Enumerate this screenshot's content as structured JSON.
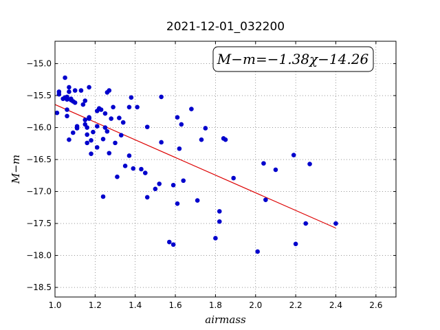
{
  "chart_data": {
    "type": "scatter",
    "title": "2021-12-01_032200",
    "xlabel": "airmass",
    "ylabel": "M−m",
    "xlim": [
      1.0,
      2.7
    ],
    "ylim": [
      -18.65,
      -14.65
    ],
    "y_inverted": true,
    "x_ticks": [
      1.0,
      1.2,
      1.4,
      1.6,
      1.8,
      2.0,
      2.2,
      2.4,
      2.6
    ],
    "x_tick_labels": [
      "1.0",
      "1.2",
      "1.4",
      "1.6",
      "1.8",
      "2.0",
      "2.2",
      "2.4",
      "2.6"
    ],
    "y_ticks": [
      -15.0,
      -15.5,
      -16.0,
      -16.5,
      -17.0,
      -17.5,
      -18.0,
      -18.5
    ],
    "y_tick_labels": [
      "−15.0",
      "−15.5",
      "−16.0",
      "−16.5",
      "−17.0",
      "−17.5",
      "−18.0",
      "−18.5"
    ],
    "grid": true,
    "point_color": "#0000cc",
    "fit_color": "#dd0000",
    "fit": {
      "slope": -1.38,
      "intercept": -14.26,
      "x_range": [
        1.0,
        2.4
      ]
    },
    "annotation": {
      "text": "M−m=−1.38χ−14.26",
      "placement": "top-right"
    },
    "points": [
      [
        1.01,
        -15.77
      ],
      [
        1.02,
        -15.48
      ],
      [
        1.02,
        -15.44
      ],
      [
        1.04,
        -15.55
      ],
      [
        1.05,
        -15.53
      ],
      [
        1.05,
        -15.22
      ],
      [
        1.06,
        -15.52
      ],
      [
        1.06,
        -15.56
      ],
      [
        1.06,
        -15.72
      ],
      [
        1.06,
        -15.82
      ],
      [
        1.07,
        -15.44
      ],
      [
        1.07,
        -15.37
      ],
      [
        1.07,
        -16.19
      ],
      [
        1.08,
        -15.57
      ],
      [
        1.08,
        -15.55
      ],
      [
        1.09,
        -15.59
      ],
      [
        1.09,
        -16.08
      ],
      [
        1.1,
        -15.61
      ],
      [
        1.1,
        -15.42
      ],
      [
        1.11,
        -16.01
      ],
      [
        1.11,
        -15.98
      ],
      [
        1.13,
        -15.42
      ],
      [
        1.14,
        -15.64
      ],
      [
        1.15,
        -15.58
      ],
      [
        1.15,
        -15.88
      ],
      [
        1.15,
        -15.95
      ],
      [
        1.16,
        -16.0
      ],
      [
        1.16,
        -16.24
      ],
      [
        1.16,
        -16.11
      ],
      [
        1.17,
        -15.85
      ],
      [
        1.17,
        -15.84
      ],
      [
        1.17,
        -15.37
      ],
      [
        1.17,
        -15.86
      ],
      [
        1.18,
        -16.2
      ],
      [
        1.18,
        -16.41
      ],
      [
        1.19,
        -16.07
      ],
      [
        1.21,
        -16.31
      ],
      [
        1.21,
        -15.74
      ],
      [
        1.21,
        -15.98
      ],
      [
        1.22,
        -15.7
      ],
      [
        1.23,
        -15.72
      ],
      [
        1.24,
        -16.18
      ],
      [
        1.24,
        -17.08
      ],
      [
        1.25,
        -16.0
      ],
      [
        1.25,
        -15.78
      ],
      [
        1.26,
        -16.06
      ],
      [
        1.26,
        -15.45
      ],
      [
        1.27,
        -16.4
      ],
      [
        1.27,
        -15.42
      ],
      [
        1.28,
        -15.86
      ],
      [
        1.29,
        -15.68
      ],
      [
        1.3,
        -16.24
      ],
      [
        1.31,
        -16.77
      ],
      [
        1.32,
        -15.85
      ],
      [
        1.33,
        -16.12
      ],
      [
        1.34,
        -15.92
      ],
      [
        1.35,
        -16.6
      ],
      [
        1.37,
        -16.44
      ],
      [
        1.37,
        -15.68
      ],
      [
        1.38,
        -15.53
      ],
      [
        1.39,
        -16.64
      ],
      [
        1.41,
        -15.68
      ],
      [
        1.43,
        -16.65
      ],
      [
        1.45,
        -16.71
      ],
      [
        1.46,
        -15.99
      ],
      [
        1.46,
        -17.09
      ],
      [
        1.5,
        -16.96
      ],
      [
        1.52,
        -16.88
      ],
      [
        1.53,
        -15.52
      ],
      [
        1.53,
        -16.23
      ],
      [
        1.57,
        -17.79
      ],
      [
        1.59,
        -16.9
      ],
      [
        1.59,
        -17.83
      ],
      [
        1.61,
        -15.84
      ],
      [
        1.61,
        -17.19
      ],
      [
        1.62,
        -16.33
      ],
      [
        1.63,
        -15.95
      ],
      [
        1.64,
        -16.83
      ],
      [
        1.68,
        -15.71
      ],
      [
        1.71,
        -17.14
      ],
      [
        1.73,
        -16.19
      ],
      [
        1.75,
        -16.01
      ],
      [
        1.8,
        -17.73
      ],
      [
        1.82,
        -17.47
      ],
      [
        1.82,
        -17.31
      ],
      [
        1.84,
        -16.17
      ],
      [
        1.85,
        -16.19
      ],
      [
        1.89,
        -16.79
      ],
      [
        2.01,
        -17.94
      ],
      [
        2.04,
        -16.56
      ],
      [
        2.05,
        -17.13
      ],
      [
        2.1,
        -16.66
      ],
      [
        2.19,
        -16.43
      ],
      [
        2.2,
        -17.82
      ],
      [
        2.25,
        -17.5
      ],
      [
        2.27,
        -16.57
      ],
      [
        2.4,
        -17.5
      ]
    ]
  }
}
